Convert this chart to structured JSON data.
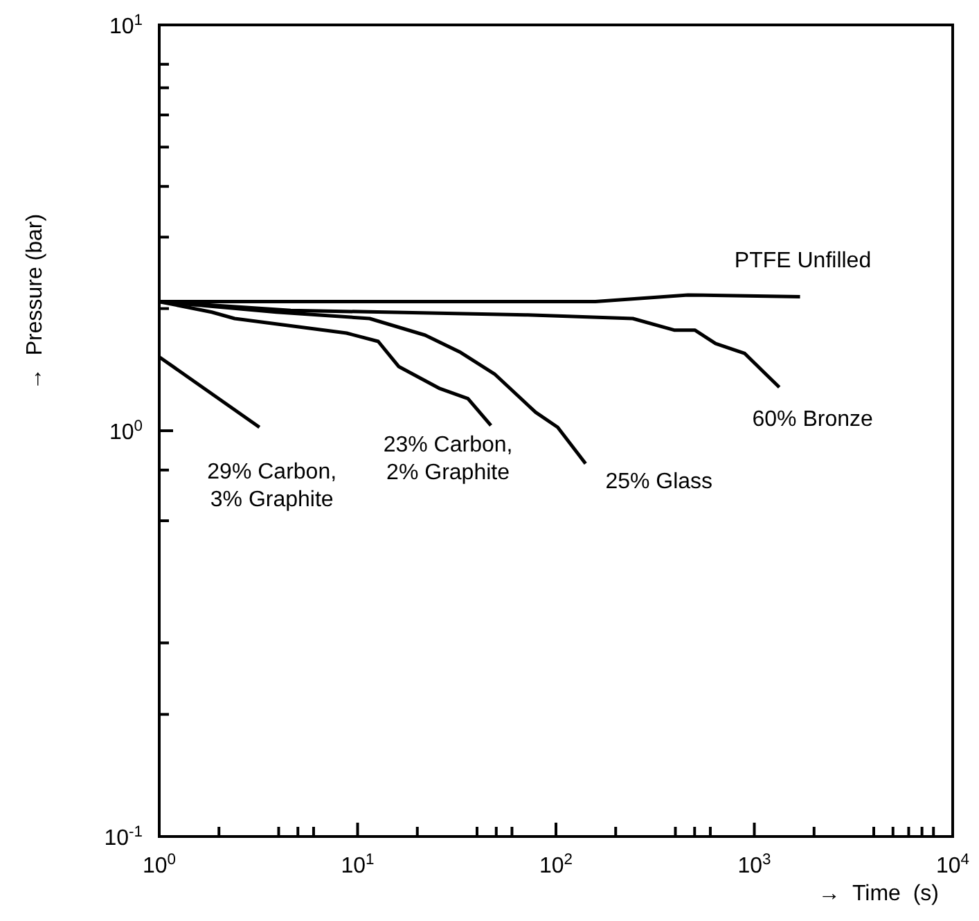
{
  "chart_data": {
    "type": "line",
    "xlabel": "→  Time  (s)",
    "ylabel": "→  Pressure (bar)",
    "log": "xy",
    "marker": "none",
    "line_style": "solid",
    "xlim": [
      1,
      10000
    ],
    "ylim": [
      0.1,
      10
    ],
    "xticks": [
      {
        "value": 1,
        "label": "10$^{0}$"
      },
      {
        "value": 2,
        "label": null
      },
      {
        "value": 4,
        "label": null
      },
      {
        "value": 5,
        "label": null
      },
      {
        "value": 6,
        "label": null
      },
      {
        "value": 10,
        "label": "10$^{1}$"
      },
      {
        "value": 20,
        "label": null
      },
      {
        "value": 40,
        "label": null
      },
      {
        "value": 50,
        "label": null
      },
      {
        "value": 60,
        "label": null
      },
      {
        "value": 100,
        "label": "10$^{2}$"
      },
      {
        "value": 200,
        "label": null
      },
      {
        "value": 400,
        "label": null
      },
      {
        "value": 500,
        "label": null
      },
      {
        "value": 600,
        "label": null
      },
      {
        "value": 1000,
        "label": "10$^{3}$"
      },
      {
        "value": 2000,
        "label": null
      },
      {
        "value": 4000,
        "label": null
      },
      {
        "value": 5000,
        "label": null
      },
      {
        "value": 6000,
        "label": null
      },
      {
        "value": 7000,
        "label": null
      },
      {
        "value": 8000,
        "label": null
      },
      {
        "value": 10000,
        "label": "10$^{4}$"
      }
    ],
    "yticks": [
      {
        "value": 0.1,
        "label": "10$^{-1}$"
      },
      {
        "value": 0.2,
        "label": null
      },
      {
        "value": 0.3,
        "label": null
      },
      {
        "value": 0.6,
        "label": null
      },
      {
        "value": 0.8,
        "label": null
      },
      {
        "value": 1,
        "label": "10$^{0}$"
      },
      {
        "value": 2,
        "label": null
      },
      {
        "value": 3,
        "label": null
      },
      {
        "value": 4,
        "label": null
      },
      {
        "value": 5,
        "label": null
      },
      {
        "value": 6,
        "label": null
      },
      {
        "value": 7,
        "label": null
      },
      {
        "value": 8,
        "label": null
      },
      {
        "value": 10,
        "label": "10$^{1}$"
      }
    ],
    "series": [
      {
        "name": "PTFE Unfilled",
        "color": "#000000",
        "x": [
          1,
          70,
          158,
          463,
          1700
        ],
        "values": [
          2.08,
          2.08,
          2.08,
          2.16,
          2.14
        ]
      },
      {
        "name": "60% Bronze",
        "color": "#000000",
        "x": [
          1,
          4.6,
          70,
          244,
          394,
          501,
          638,
          895,
          1140,
          1337
        ],
        "values": [
          2.08,
          1.98,
          1.93,
          1.89,
          1.77,
          1.77,
          1.64,
          1.55,
          1.38,
          1.28
        ]
      },
      {
        "name": "25% Glass",
        "color": "#000000",
        "x": [
          1,
          3.9,
          11.5,
          21.9,
          33,
          49,
          79,
          102,
          141
        ],
        "values": [
          2.08,
          1.96,
          1.89,
          1.72,
          1.56,
          1.38,
          1.11,
          1.02,
          0.83
        ]
      },
      {
        "name": "23% Carbon,\n2% Graphite",
        "color": "#000000",
        "x": [
          1,
          1.84,
          2.4,
          8.8,
          12.7,
          16.1,
          26,
          36,
          47
        ],
        "values": [
          2.08,
          1.96,
          1.89,
          1.74,
          1.66,
          1.44,
          1.27,
          1.2,
          1.03
        ]
      },
      {
        "name": "29% Carbon,\n3% Graphite",
        "color": "#000000",
        "x": [
          1,
          3.2
        ],
        "values": [
          1.52,
          1.02
        ]
      }
    ]
  }
}
